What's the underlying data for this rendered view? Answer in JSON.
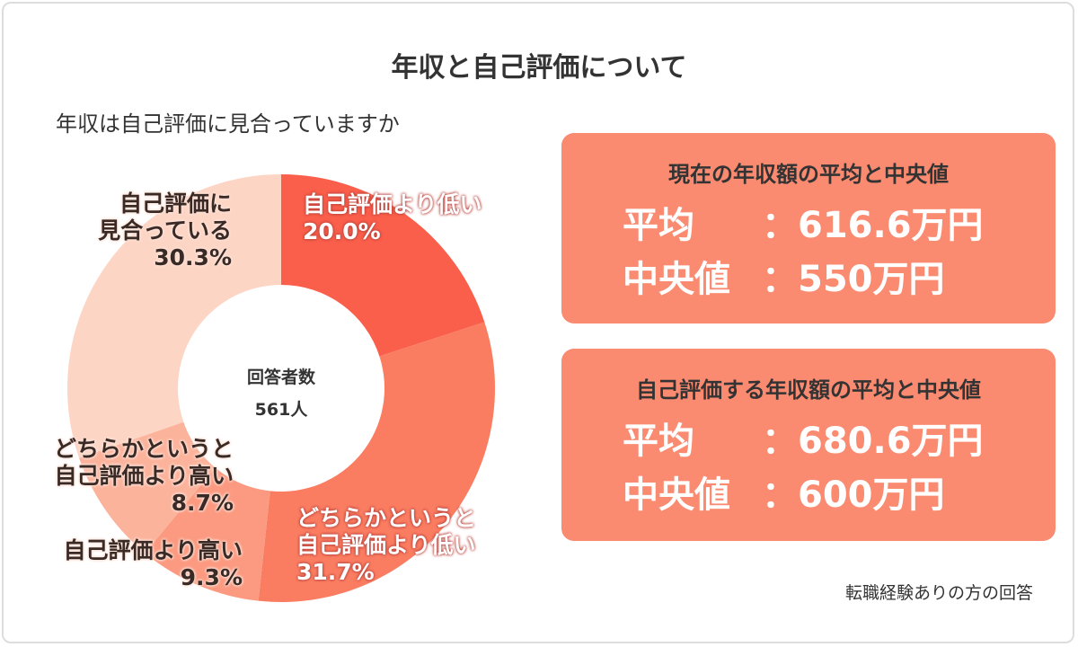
{
  "title": "年収と自己評価について",
  "subtitle": "年収は自己評価に見合っていますか",
  "chart_data": {
    "type": "pie",
    "style": "donut",
    "center_label": [
      "回答者数",
      "561人"
    ],
    "slices": [
      {
        "label": "自己評価より低い",
        "value": 20.0,
        "display": "20.0%",
        "color": "#fa5f4b"
      },
      {
        "label": "どちらかというと自己評価より低い",
        "value": 31.7,
        "display": "31.7%",
        "color": "#fa7d62"
      },
      {
        "label": "自己評価より高い",
        "value": 9.3,
        "display": "9.3%",
        "color": "#fb9a80"
      },
      {
        "label": "どちらかというと自己評価より高い",
        "value": 8.7,
        "display": "8.7%",
        "color": "#fcb39c"
      },
      {
        "label": "自己評価に見合っている",
        "value": 30.3,
        "display": "30.3%",
        "color": "#fdd5c4"
      }
    ],
    "label_lines": {
      "s0": [
        "自己評価より低い"
      ],
      "s1": [
        "どちらかというと",
        "自己評価より低い"
      ],
      "s2": [
        "自己評価より高い"
      ],
      "s3": [
        "どちらかというと",
        "自己評価より高い"
      ],
      "s4": [
        "自己評価に",
        "見合っている"
      ]
    }
  },
  "boxes": [
    {
      "heading": "現在の年収額の平均と中央値",
      "avg_key": "平均",
      "avg": "：616.6万円",
      "med_key": "中央値",
      "med": "：550万円"
    },
    {
      "heading": "自己評価する年収額の平均と中央値",
      "avg_key": "平均",
      "avg": "：680.6万円",
      "med_key": "中央値",
      "med": "：600万円"
    }
  ],
  "colors": {
    "box": "#fa8a70"
  },
  "note": "転職経験ありの方の回答"
}
